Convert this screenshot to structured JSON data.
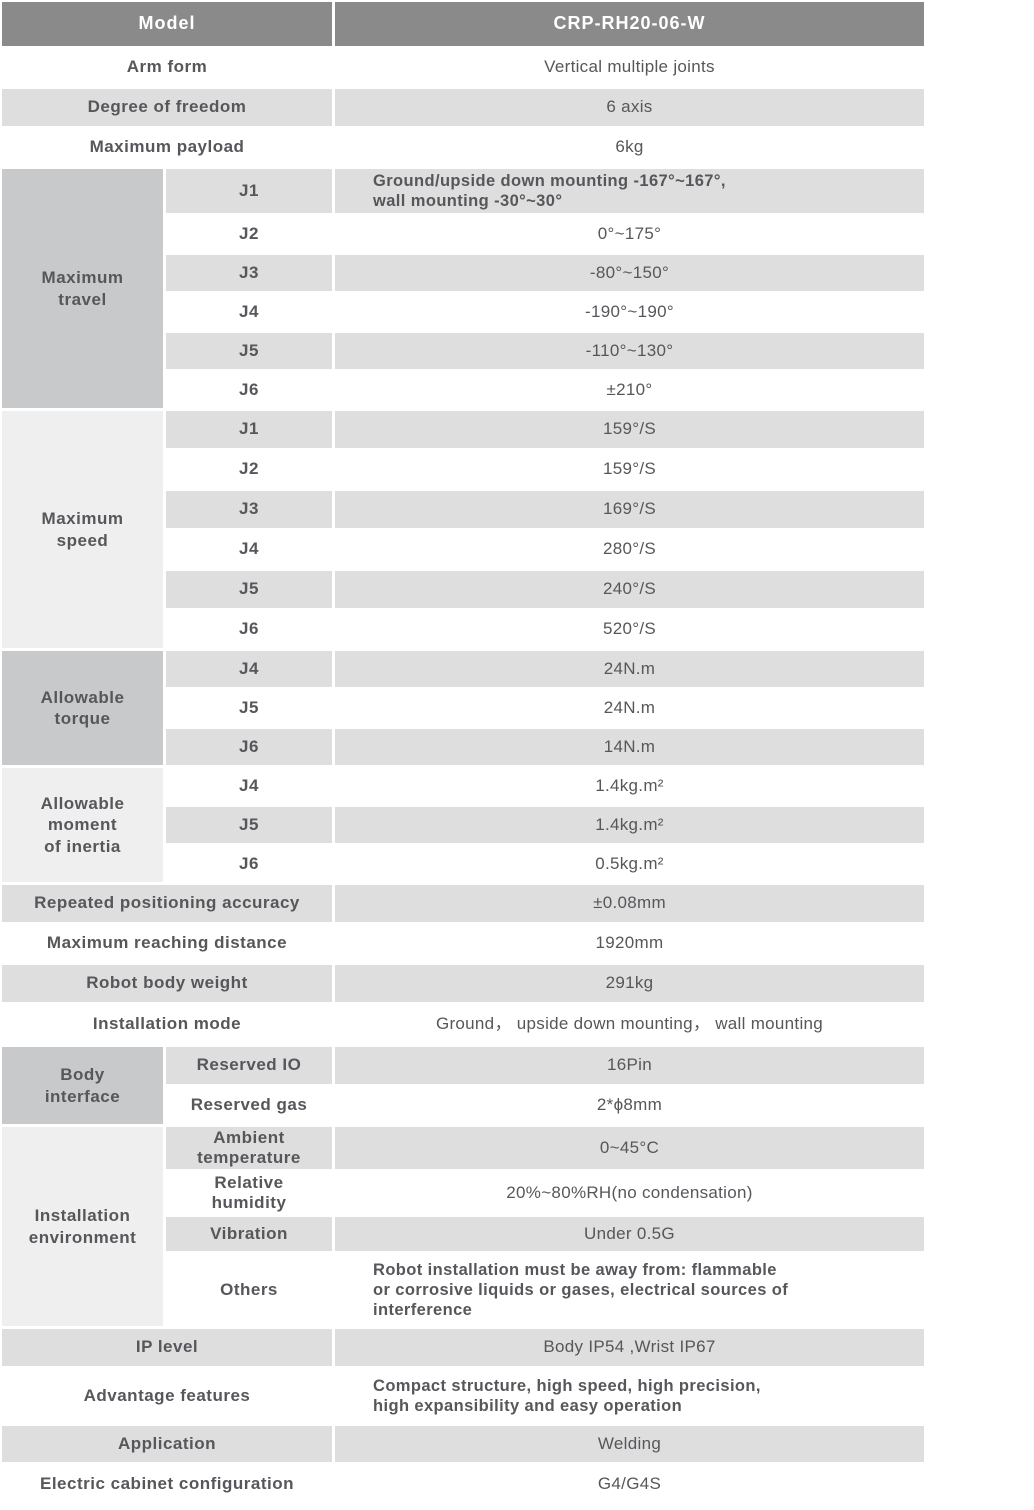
{
  "colors": {
    "header_bg": "#8a8a8a",
    "row_gray": "#dedede",
    "group_dark": "#c8c9ca",
    "group_light": "#efefef",
    "text": "#56575b",
    "header_text": "#ffffff"
  },
  "header": {
    "label": "Model",
    "value": "CRP-RH20-06-W"
  },
  "rows": {
    "arm_form": {
      "label": "Arm form",
      "value": "Vertical multiple joints"
    },
    "dof": {
      "label": "Degree of freedom",
      "value": "6 axis"
    },
    "payload": {
      "label": "Maximum payload",
      "value": "6kg"
    },
    "repeat_accuracy": {
      "label": "Repeated positioning accuracy",
      "value": "±0.08mm"
    },
    "reach": {
      "label": "Maximum reaching distance",
      "value": "1920mm"
    },
    "weight": {
      "label": "Robot body weight",
      "value": "291kg"
    },
    "install_mode": {
      "label": "Installation mode",
      "value": "Ground， upside down mounting， wall mounting"
    },
    "ip_level": {
      "label": "IP level",
      "value": "Body IP54 ,Wrist IP67"
    },
    "advantage": {
      "label": "Advantage features",
      "value": "Compact structure, high speed, high precision,\nhigh expansibility and easy operation"
    },
    "application": {
      "label": "Application",
      "value": "Welding"
    },
    "cabinet": {
      "label": "Electric cabinet configuration",
      "value": "G4/G4S"
    }
  },
  "groups": {
    "travel": {
      "label": "Maximum\ntravel",
      "items": [
        {
          "sub": "J1",
          "value": "Ground/upside down mounting -167°~167°,\nwall mounting -30°~30°"
        },
        {
          "sub": "J2",
          "value": "0°~175°"
        },
        {
          "sub": "J3",
          "value": "-80°~150°"
        },
        {
          "sub": "J4",
          "value": "-190°~190°"
        },
        {
          "sub": "J5",
          "value": "-110°~130°"
        },
        {
          "sub": "J6",
          "value": "±210°"
        }
      ]
    },
    "speed": {
      "label": "Maximum\nspeed",
      "items": [
        {
          "sub": "J1",
          "value": "159°/S"
        },
        {
          "sub": "J2",
          "value": "159°/S"
        },
        {
          "sub": "J3",
          "value": "169°/S"
        },
        {
          "sub": "J4",
          "value": "280°/S"
        },
        {
          "sub": "J5",
          "value": "240°/S"
        },
        {
          "sub": "J6",
          "value": "520°/S"
        }
      ]
    },
    "torque": {
      "label": "Allowable\ntorque",
      "items": [
        {
          "sub": "J4",
          "value": "24N.m"
        },
        {
          "sub": "J5",
          "value": "24N.m"
        },
        {
          "sub": "J6",
          "value": "14N.m"
        }
      ]
    },
    "inertia": {
      "label": "Allowable\nmoment\nof inertia",
      "items": [
        {
          "sub": "J4",
          "value": "1.4kg.m²"
        },
        {
          "sub": "J5",
          "value": "1.4kg.m²"
        },
        {
          "sub": "J6",
          "value": "0.5kg.m²"
        }
      ]
    },
    "body_interface": {
      "label": "Body\ninterface",
      "items": [
        {
          "sub": "Reserved IO",
          "value": "16Pin"
        },
        {
          "sub": "Reserved gas",
          "value": "2*ϕ8mm"
        }
      ]
    },
    "environment": {
      "label": "Installation\nenvironment",
      "items": [
        {
          "sub": "Ambient\ntemperature",
          "value": "0~45°C"
        },
        {
          "sub": "Relative\nhumidity",
          "value": "20%~80%RH(no condensation)"
        },
        {
          "sub": "Vibration",
          "value": "Under 0.5G"
        },
        {
          "sub": "Others",
          "value": "Robot installation must be away from: flammable\nor corrosive liquids or gases, electrical sources of\ninterference"
        }
      ]
    }
  }
}
